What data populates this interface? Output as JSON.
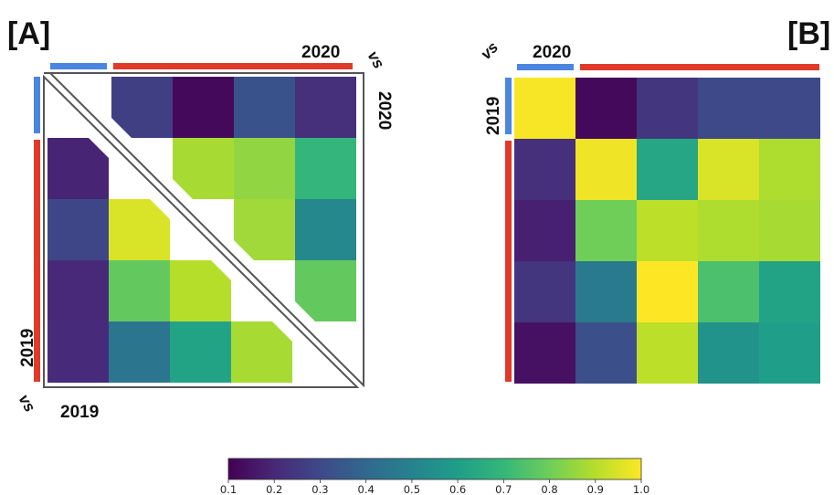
{
  "panels": {
    "a": {
      "label": "[A]",
      "x_axis": "2019",
      "y_axis": "2019",
      "right_axis": "2020",
      "top_axis": "2020",
      "vs": "vs"
    },
    "b": {
      "label": "[B]",
      "y_axis": "2019",
      "top_axis": "2020",
      "vs": "vs"
    }
  },
  "colors": {
    "group_short": "#4a86e0",
    "group_long": "#e03a2a",
    "frame": "#555555"
  },
  "colorbar": {
    "colormap": "viridis",
    "min": 0.1,
    "max": 1.0,
    "ticks": [
      "0.1",
      "0.2",
      "0.3",
      "0.4",
      "0.5",
      "0.6",
      "0.7",
      "0.8",
      "0.9",
      "1.0"
    ]
  },
  "chart_data": [
    {
      "type": "heatmap",
      "title": "[A]",
      "rows": 5,
      "cols": 5,
      "upper_triangle": {
        "description_axes": "2020 vs 2020",
        "values": [
          [
            null,
            0.27,
            0.12,
            0.33,
            0.22
          ],
          [
            null,
            null,
            0.88,
            0.85,
            0.69
          ],
          [
            null,
            null,
            null,
            0.87,
            0.52
          ],
          [
            null,
            null,
            null,
            null,
            0.78
          ],
          [
            null,
            null,
            null,
            null,
            null
          ]
        ]
      },
      "lower_triangle": {
        "description_axes": "2019 vs 2019",
        "values": [
          [
            null,
            null,
            null,
            null,
            null
          ],
          [
            0.19,
            null,
            null,
            null,
            null
          ],
          [
            0.29,
            0.95,
            null,
            null,
            null
          ],
          [
            0.2,
            0.78,
            0.9,
            null,
            null
          ],
          [
            0.21,
            0.45,
            0.62,
            0.88,
            null
          ]
        ]
      },
      "colorbar_range": [
        0.1,
        1.0
      ]
    },
    {
      "type": "heatmap",
      "title": "[B]",
      "rows": 5,
      "cols": 5,
      "x_label": "2020",
      "y_label": "2019",
      "values": [
        [
          0.99,
          0.12,
          0.24,
          0.3,
          0.3
        ],
        [
          0.22,
          0.98,
          0.63,
          0.95,
          0.89
        ],
        [
          0.18,
          0.8,
          0.91,
          0.89,
          0.88
        ],
        [
          0.24,
          0.47,
          1.0,
          0.74,
          0.62
        ],
        [
          0.14,
          0.32,
          0.91,
          0.56,
          0.6
        ]
      ],
      "colorbar_range": [
        0.1,
        1.0
      ]
    }
  ]
}
